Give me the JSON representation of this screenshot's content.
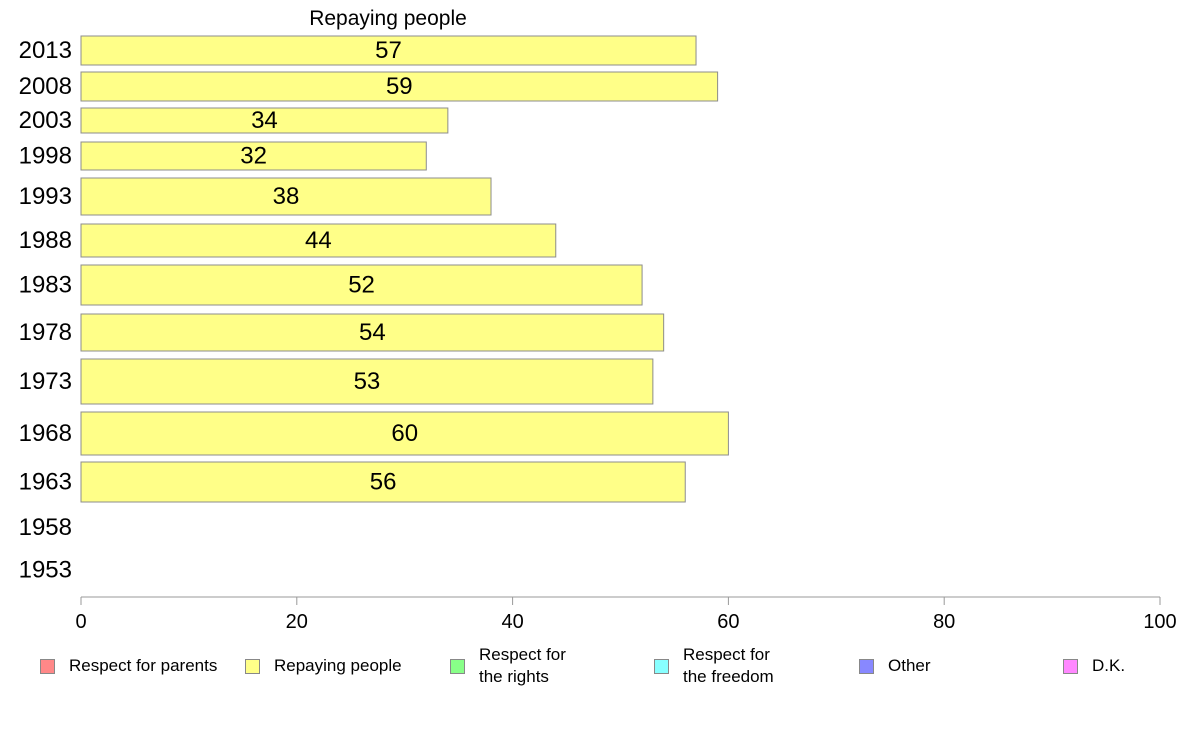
{
  "chart_data": {
    "type": "bar",
    "orientation": "horizontal",
    "title": "Repaying people",
    "categories": [
      "2013",
      "2008",
      "2003",
      "1998",
      "1993",
      "1988",
      "1983",
      "1978",
      "1973",
      "1968",
      "1963",
      "1958",
      "1953"
    ],
    "series": [
      {
        "name": "Repaying people",
        "values": [
          57,
          59,
          34,
          32,
          38,
          44,
          52,
          54,
          53,
          60,
          56,
          null,
          null
        ]
      }
    ],
    "data_labels": [
      "57",
      "59",
      "34",
      "32",
      "38",
      "44",
      "52",
      "54",
      "53",
      "60",
      "56",
      "",
      ""
    ],
    "xlim": [
      0,
      100
    ],
    "xticks": [
      "0",
      "20",
      "40",
      "60",
      "80",
      "100"
    ],
    "grid": false,
    "legend_position": "bottom",
    "bar_color": "#ffff88"
  },
  "legend": {
    "items": [
      {
        "label": "Respect for parents",
        "color": "#ff8888"
      },
      {
        "label": "Repaying people",
        "color": "#ffff88"
      },
      {
        "label": "Respect for\nthe rights",
        "color": "#88ff88"
      },
      {
        "label": "Respect for\nthe freedom",
        "color": "#88ffff"
      },
      {
        "label": "Other",
        "color": "#8888ff"
      },
      {
        "label": "D.K.",
        "color": "#ff88ff"
      }
    ]
  }
}
